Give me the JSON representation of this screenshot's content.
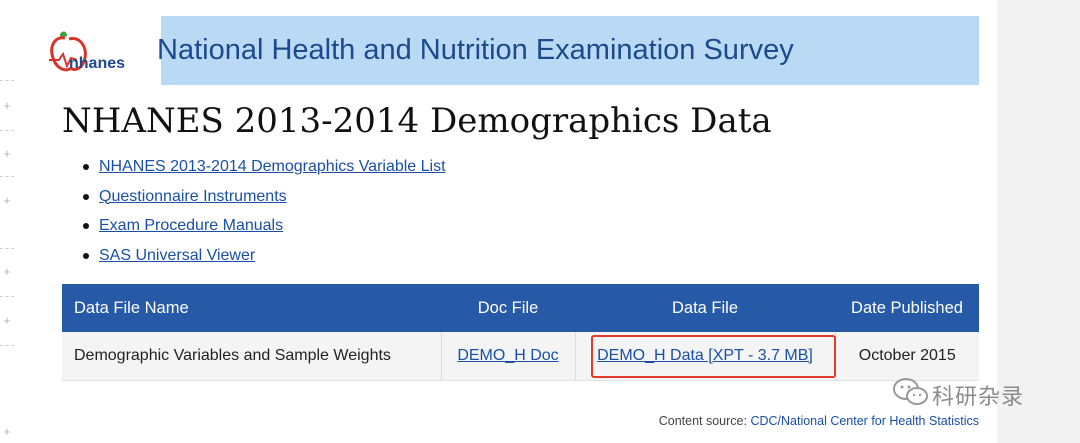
{
  "banner": {
    "logo_text": "nhanes",
    "title": "National Health and Nutrition Examination Survey"
  },
  "page": {
    "title": "NHANES 2013-2014 Demographics Data"
  },
  "links": [
    "NHANES 2013-2014 Demographics Variable List",
    "Questionnaire Instruments",
    "Exam Procedure Manuals",
    "SAS Universal Viewer"
  ],
  "table": {
    "headers": [
      "Data File Name",
      "Doc File",
      "Data File",
      "Date Published"
    ],
    "rows": [
      {
        "name": "Demographic Variables and Sample Weights",
        "doc": "DEMO_H Doc",
        "data": "DEMO_H Data [XPT - 3.7 MB]",
        "date": "October 2015"
      }
    ]
  },
  "footer": {
    "prefix": "Content source: ",
    "link": "CDC/National Center for Health Statistics"
  },
  "watermark": {
    "text": "科研杂录",
    "icon": "wechat-icon"
  },
  "colors": {
    "banner_bg": "#b9d9f5",
    "table_header": "#2659a6",
    "link": "#1a4fa8",
    "highlight": "#e03b2b"
  }
}
